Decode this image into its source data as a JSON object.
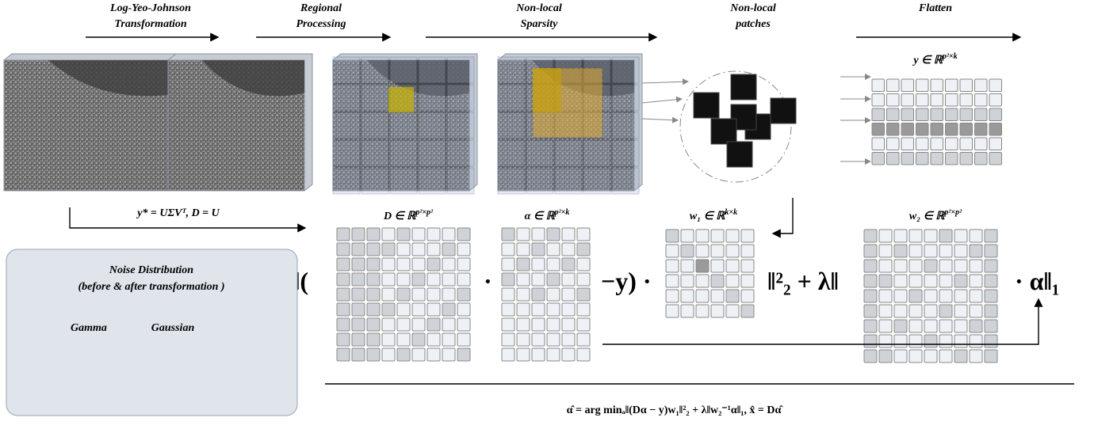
{
  "steps": [
    {
      "line1": "Log-Yeo-Johnson",
      "line2": "Transformation"
    },
    {
      "line1": "Regional",
      "line2": "Processing"
    },
    {
      "line1": "Non-local",
      "line2": "Sparsity"
    },
    {
      "line1": "Non-local",
      "line2": "patches"
    },
    {
      "line1": "Flatten"
    }
  ],
  "labels": {
    "y": {
      "base": "y ∈ ℝ",
      "sup": "p²×k"
    },
    "svd": "y* = UΣVᵀ, D = U",
    "D": {
      "base": "D ∈ ℝ",
      "sup": "p²×p²"
    },
    "alpha": {
      "base": "α ∈ ℝ",
      "sup": "p²×k"
    },
    "w1": {
      "base": "w₁ ∈ ℝ",
      "sup": "k×k"
    },
    "w2": {
      "base": "w₂ ∈ ℝ",
      "sup": "p²×p²"
    }
  },
  "equation": {
    "open": "‖(",
    "dot": "·",
    "minus_y": "−y) ·",
    "norm2": "‖²₂ + λ‖",
    "end": "· α‖₁"
  },
  "noise": {
    "title": "Noise Distribution",
    "subtitle": "(before & after transformation )",
    "from": "Gamma",
    "to": "Gaussian"
  },
  "objective": "α̂ = arg minₐ‖(Dα − y)w₁‖²₂ + λ‖w₂⁻¹α‖₁, x̂ = Dα̂"
}
